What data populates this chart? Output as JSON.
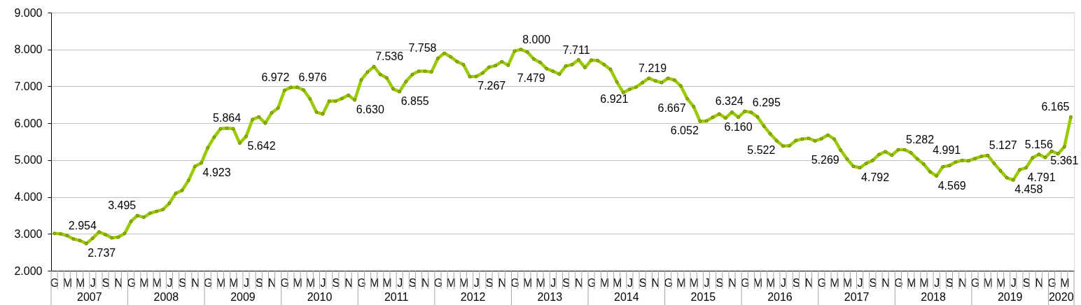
{
  "chart_data": {
    "type": "line",
    "categories": [
      "G",
      null,
      "M",
      null,
      "M",
      null,
      "J",
      null,
      "S",
      null,
      "N",
      null,
      "G",
      null,
      "M",
      null,
      "M",
      null,
      "J",
      null,
      "S",
      null,
      "N",
      null,
      "G",
      null,
      "M",
      null,
      "M",
      null,
      "J",
      null,
      "S",
      null,
      "N",
      null,
      "G",
      null,
      "M",
      null,
      "M",
      null,
      "J",
      null,
      "S",
      null,
      "N",
      null,
      "G",
      null,
      "M",
      null,
      "M",
      null,
      "J",
      null,
      "S",
      null,
      "N",
      null,
      "G",
      null,
      "M",
      null,
      "M",
      null,
      "J",
      null,
      "S",
      null,
      "N",
      null,
      "G",
      null,
      "M",
      null,
      "M",
      null,
      "J",
      null,
      "S",
      null,
      "N",
      null,
      "G",
      null,
      "M",
      null,
      "M",
      null,
      "J",
      null,
      "S",
      null,
      "N",
      null,
      "G",
      null,
      "M",
      null,
      "M",
      null,
      "J",
      null,
      "S",
      null,
      "N",
      null,
      "G",
      null,
      "M",
      null,
      "M",
      null,
      "J",
      null,
      "S",
      null,
      "N",
      null,
      "G",
      null,
      "M",
      null,
      "M",
      null,
      "J",
      null,
      "S",
      null,
      "N",
      null,
      "G",
      null,
      "M",
      null,
      "M",
      null,
      "J",
      null,
      "S",
      null,
      "N",
      null,
      "G",
      null,
      "M",
      null,
      "M",
      null,
      "J",
      null,
      "S",
      null,
      "N",
      null,
      "G",
      null,
      "M",
      null
    ],
    "series": [
      {
        "color": "#99cc00",
        "values": [
          3010,
          3000,
          2954,
          2860,
          2820,
          2737,
          2880,
          3050,
          2980,
          2890,
          2910,
          3010,
          3340,
          3495,
          3450,
          3560,
          3610,
          3660,
          3830,
          4100,
          4180,
          4450,
          4830,
          4923,
          5330,
          5620,
          5850,
          5864,
          5850,
          5460,
          5642,
          6100,
          6170,
          6000,
          6280,
          6410,
          6890,
          6972,
          6976,
          6900,
          6660,
          6300,
          6250,
          6600,
          6600,
          6670,
          6760,
          6630,
          7170,
          7390,
          7536,
          7320,
          7230,
          6930,
          6855,
          7130,
          7320,
          7410,
          7410,
          7390,
          7758,
          7900,
          7800,
          7670,
          7590,
          7260,
          7267,
          7360,
          7520,
          7560,
          7670,
          7570,
          7960,
          8000,
          7930,
          7740,
          7650,
          7479,
          7410,
          7330,
          7550,
          7590,
          7720,
          7510,
          7711,
          7700,
          7590,
          7460,
          7120,
          6830,
          6921,
          6980,
          7100,
          7220,
          7150,
          7100,
          7219,
          7170,
          7010,
          6667,
          6450,
          6052,
          6060,
          6160,
          6250,
          6140,
          6300,
          6160,
          6324,
          6295,
          6170,
          5920,
          5710,
          5522,
          5380,
          5390,
          5530,
          5570,
          5590,
          5520,
          5580,
          5680,
          5570,
          5269,
          5030,
          4830,
          4792,
          4910,
          4990,
          5150,
          5230,
          5130,
          5280,
          5282,
          5200,
          5030,
          4890,
          4680,
          4569,
          4820,
          4850,
          4950,
          4991,
          4980,
          5040,
          5100,
          5127,
          4910,
          4710,
          4520,
          4458,
          4740,
          4791,
          5060,
          5156,
          5070,
          5240,
          5170,
          5361,
          6165
        ],
        "value_labels": [
          null,
          null,
          "2.954",
          null,
          null,
          "2.737",
          null,
          null,
          null,
          null,
          null,
          null,
          null,
          "3.495",
          null,
          null,
          null,
          null,
          null,
          null,
          null,
          null,
          null,
          "4.923",
          null,
          null,
          null,
          "5.864",
          null,
          null,
          "5.642",
          null,
          null,
          null,
          null,
          null,
          null,
          "6.972",
          "6.976",
          null,
          null,
          null,
          null,
          null,
          null,
          null,
          null,
          "6.630",
          null,
          null,
          "7.536",
          null,
          null,
          null,
          "6.855",
          null,
          null,
          null,
          null,
          null,
          "7.758",
          null,
          null,
          null,
          null,
          null,
          "7.267",
          null,
          null,
          null,
          null,
          null,
          null,
          "8.000",
          null,
          null,
          null,
          "7.479",
          null,
          null,
          null,
          null,
          null,
          null,
          "7.711",
          null,
          null,
          null,
          null,
          null,
          "6.921",
          null,
          null,
          null,
          null,
          null,
          "7.219",
          null,
          null,
          "6.667",
          null,
          "6.052",
          null,
          null,
          null,
          null,
          null,
          "6.160",
          "6.324",
          "6.295",
          null,
          null,
          null,
          "5.522",
          null,
          null,
          null,
          null,
          null,
          null,
          null,
          null,
          null,
          "5.269",
          null,
          null,
          "4.792",
          null,
          null,
          null,
          null,
          null,
          null,
          "5.282",
          null,
          null,
          null,
          null,
          "4.569",
          null,
          null,
          null,
          "4.991",
          null,
          null,
          null,
          "5.127",
          null,
          null,
          null,
          "4.458",
          null,
          "4.791",
          null,
          "5.156",
          null,
          null,
          null,
          "5.361",
          "6.165"
        ]
      }
    ],
    "ylim": [
      2000,
      9000
    ],
    "yticks": [
      {
        "value": 2000,
        "label": "2.000"
      },
      {
        "value": 3000,
        "label": "3.000"
      },
      {
        "value": 4000,
        "label": "4.000"
      },
      {
        "value": 5000,
        "label": "5.000"
      },
      {
        "value": 6000,
        "label": "6.000"
      },
      {
        "value": 7000,
        "label": "7.000"
      },
      {
        "value": 8000,
        "label": "8.000"
      },
      {
        "value": 9000,
        "label": "9.000"
      }
    ],
    "annotations": [
      "2007",
      "2008",
      "2009",
      "2010",
      "2011",
      "2012",
      "2013",
      "2014",
      "2015",
      "2016",
      "2017",
      "2018",
      "2019",
      "2020"
    ],
    "grid": "y",
    "marker": "circle",
    "line_style": "solid"
  }
}
